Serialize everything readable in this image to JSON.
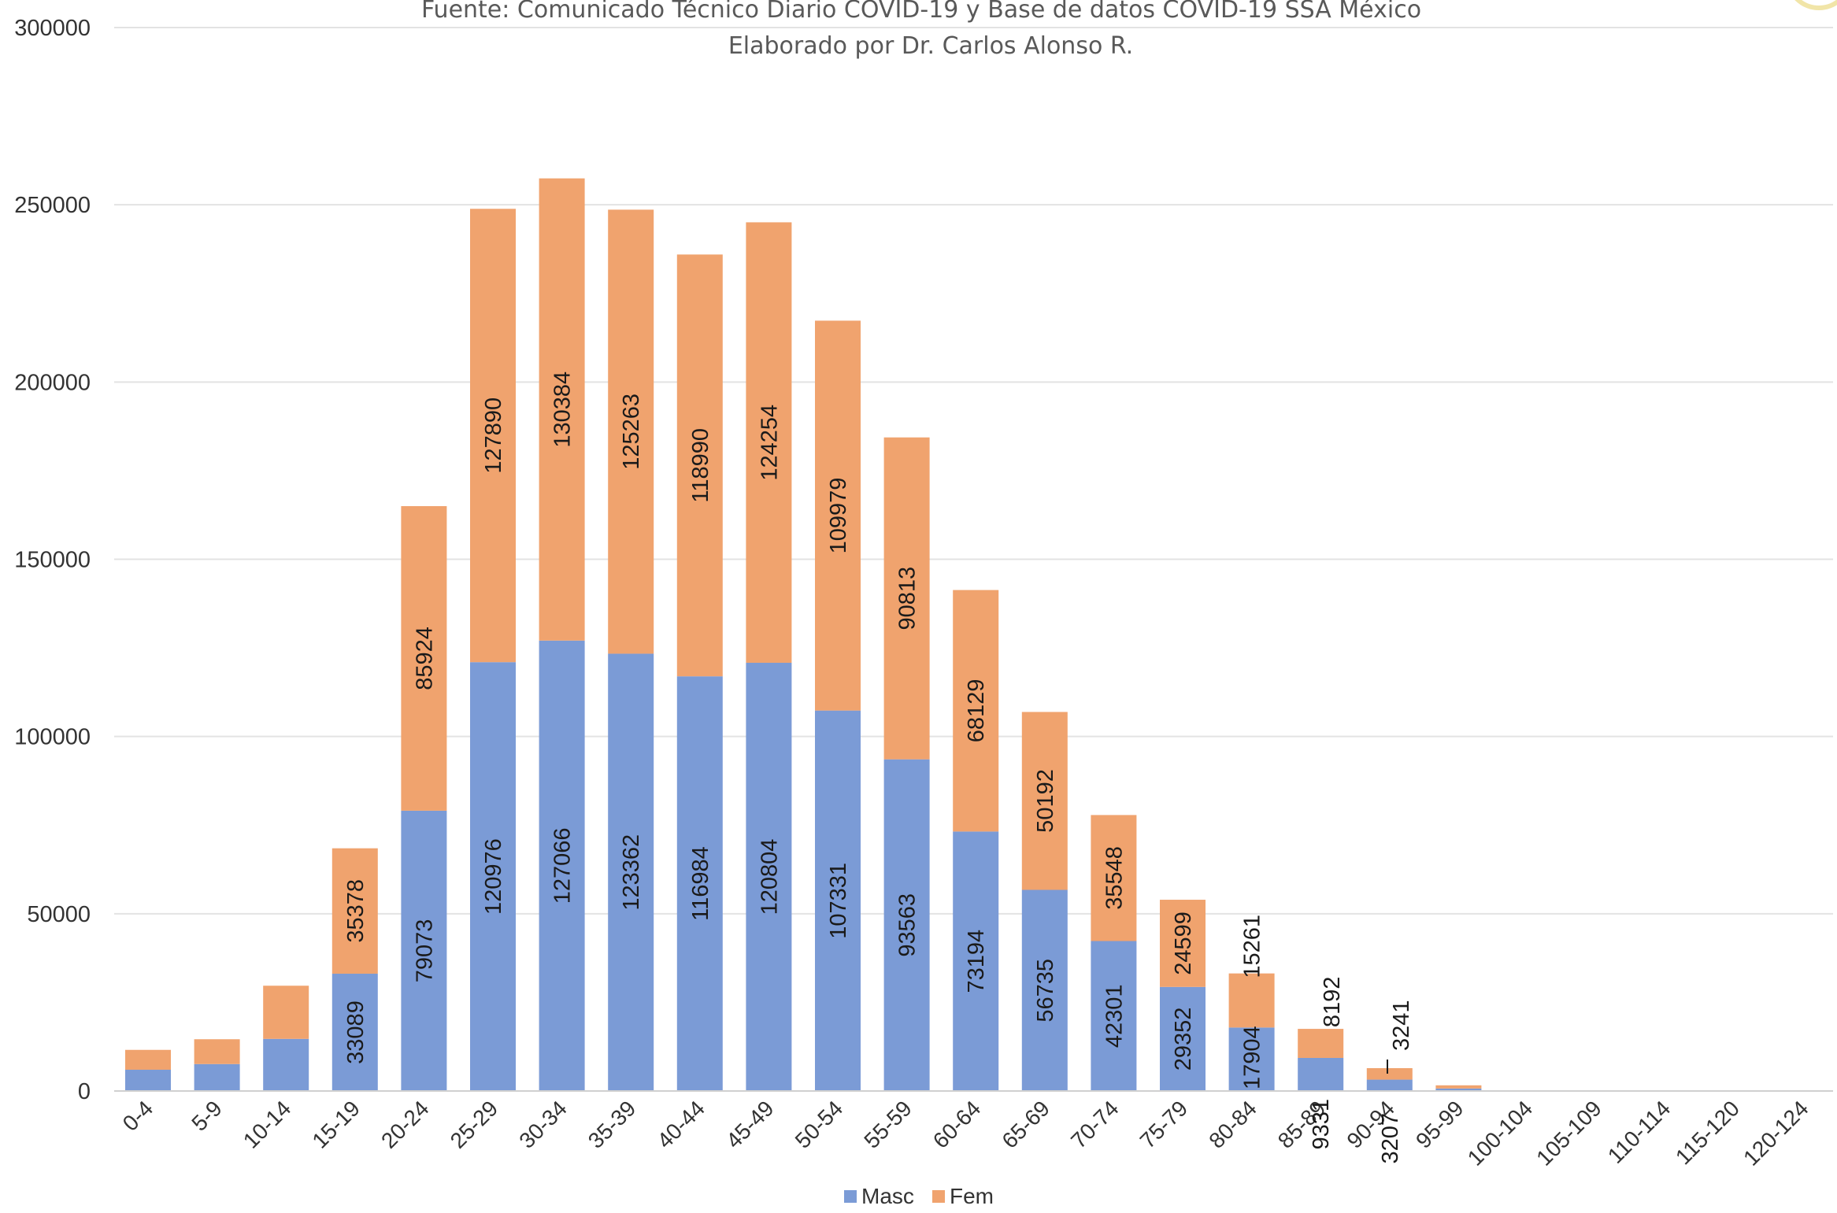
{
  "chart_data": {
    "type": "bar",
    "stacked": true,
    "subtitle_lines": [
      "Fuente: Comunicado Técnico Diario COVID-19 y Base de datos COVID-19 SSA México",
      "Elaborado por Dr. Carlos Alonso R."
    ],
    "categories": [
      "0-4",
      "5-9",
      "10-14",
      "15-19",
      "20-24",
      "25-29",
      "30-34",
      "35-39",
      "40-44",
      "45-49",
      "50-54",
      "55-59",
      "60-64",
      "65-69",
      "70-74",
      "75-79",
      "80-84",
      "85-89",
      "90-94",
      "95-99",
      "100-104",
      "105-109",
      "110-114",
      "115-120",
      "120-124"
    ],
    "series": [
      {
        "name": "Masc",
        "color": "#7b9bd6",
        "values": [
          6000,
          7600,
          14700,
          33089,
          79073,
          120976,
          127066,
          123362,
          116984,
          120804,
          107331,
          93563,
          73194,
          56735,
          42301,
          29352,
          17904,
          9331,
          3207,
          700,
          40,
          0,
          0,
          0,
          0
        ],
        "labels": [
          "",
          "",
          "",
          "33089",
          "79073",
          "120976",
          "127066",
          "123362",
          "116984",
          "120804",
          "107331",
          "93563",
          "73194",
          "56735",
          "42301",
          "29352",
          "17904",
          "9331",
          "3207",
          "",
          "",
          "",
          "",
          "",
          ""
        ]
      },
      {
        "name": "Fem",
        "color": "#f0a36e",
        "values": [
          5600,
          7000,
          15000,
          35378,
          85924,
          127890,
          130384,
          125263,
          118990,
          124254,
          109979,
          90813,
          68129,
          50192,
          35548,
          24599,
          15261,
          8192,
          3241,
          900,
          40,
          0,
          0,
          0,
          0
        ],
        "labels": [
          "",
          "",
          "",
          "35378",
          "85924",
          "127890",
          "130384",
          "125263",
          "118990",
          "124254",
          "109979",
          "90813",
          "68129",
          "50192",
          "35548",
          "24599",
          "15261",
          "8192",
          "3241",
          "",
          "",
          "",
          "",
          "",
          ""
        ]
      }
    ],
    "ylim": [
      0,
      300000
    ],
    "yticks": [
      "0",
      "50000",
      "100000",
      "150000",
      "200000",
      "250000",
      "300000"
    ],
    "grid": true,
    "legend_position": "bottom"
  }
}
